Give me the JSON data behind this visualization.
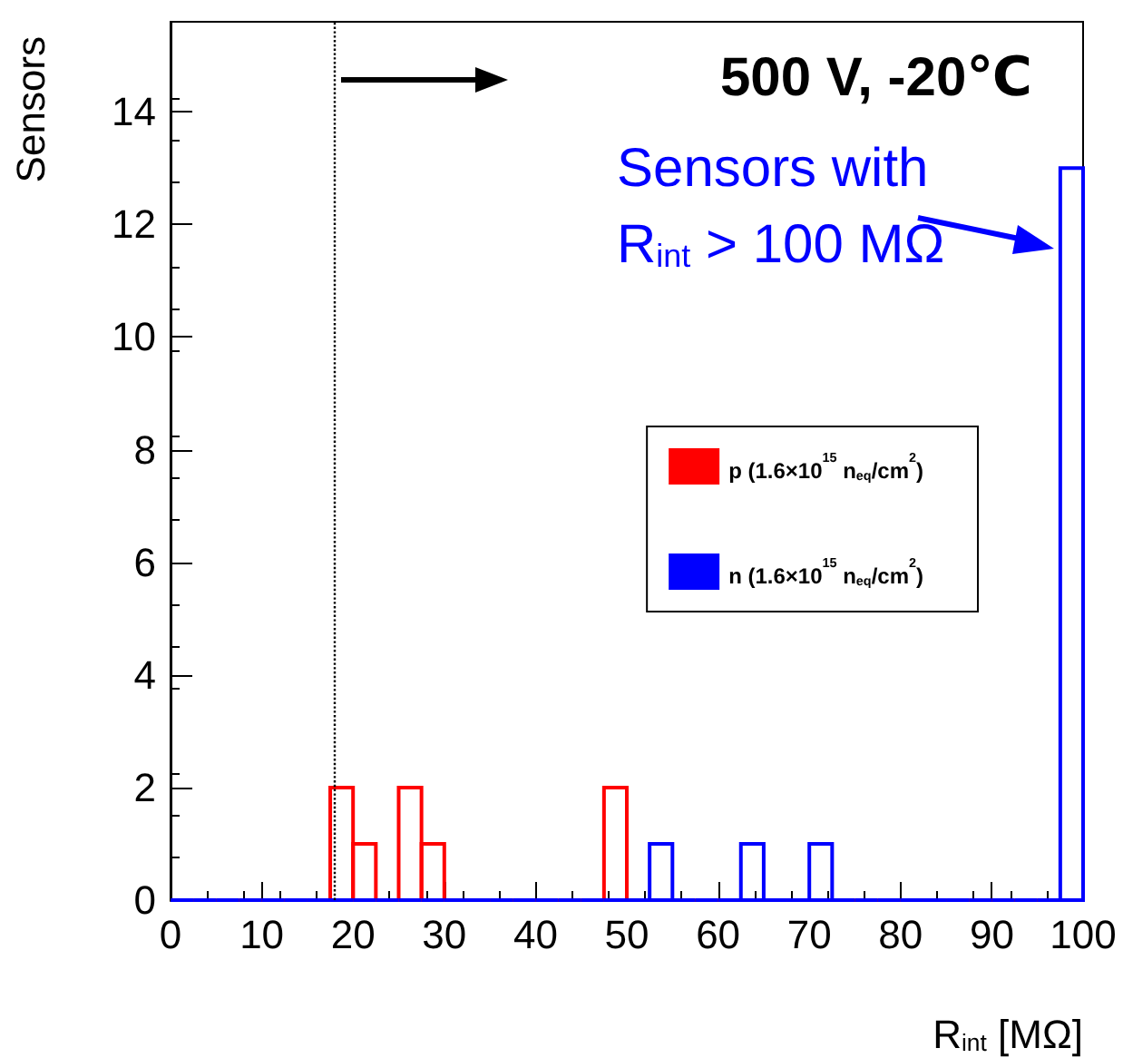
{
  "chart_data": {
    "type": "histogram",
    "xlabel": "R$_{int}$ [MΩ]",
    "ylabel": "Sensors",
    "bins": [
      0,
      2.5,
      5,
      7.5,
      10,
      12.5,
      15,
      17.5,
      20,
      22.5,
      25,
      27.5,
      30,
      32.5,
      35,
      37.5,
      40,
      42.5,
      45,
      47.5,
      50,
      52.5,
      55,
      57.5,
      60,
      62.5,
      65,
      67.5,
      70,
      72.5,
      75,
      77.5,
      80,
      82.5,
      85,
      87.5,
      90,
      92.5,
      95,
      97.5,
      100
    ],
    "series": [
      {
        "name": "p (1.6×10$^{15}$ n$_{eq}$/cm$^{2}$)",
        "color": "#ff0000",
        "values": [
          0,
          0,
          0,
          0,
          0,
          0,
          0,
          2,
          1,
          0,
          2,
          1,
          0,
          0,
          0,
          0,
          0,
          0,
          0,
          2,
          0,
          0,
          0,
          0,
          0,
          0,
          0,
          0,
          0,
          0,
          0,
          0,
          0,
          0,
          0,
          0,
          0,
          0,
          0,
          0
        ]
      },
      {
        "name": "n (1.6×10$^{15}$ n$_{eq}$/cm$^{2}$)",
        "color": "#0000ff",
        "values": [
          0,
          0,
          0,
          0,
          0,
          0,
          0,
          0,
          0,
          0,
          0,
          0,
          0,
          0,
          0,
          0,
          0,
          0,
          0,
          0,
          0,
          1,
          0,
          0,
          0,
          1,
          0,
          0,
          1,
          0,
          0,
          0,
          0,
          0,
          0,
          0,
          0,
          0,
          0,
          13
        ]
      }
    ],
    "xlim": [
      0,
      100
    ],
    "xticks": [
      0,
      10,
      20,
      30,
      40,
      50,
      60,
      70,
      80,
      90,
      100
    ],
    "ylim": [
      0,
      15.6
    ],
    "yticks": [
      0,
      2,
      4,
      6,
      8,
      10,
      12,
      14
    ],
    "ref_lines": [
      {
        "axis": "x",
        "value": 18,
        "color": "#000000",
        "line_style": "dotted"
      }
    ],
    "annotations": [
      "500 V, -20℃",
      "Sensors with R$_{int}$ > 100 MΩ"
    ],
    "legend": "right",
    "grid": false
  }
}
